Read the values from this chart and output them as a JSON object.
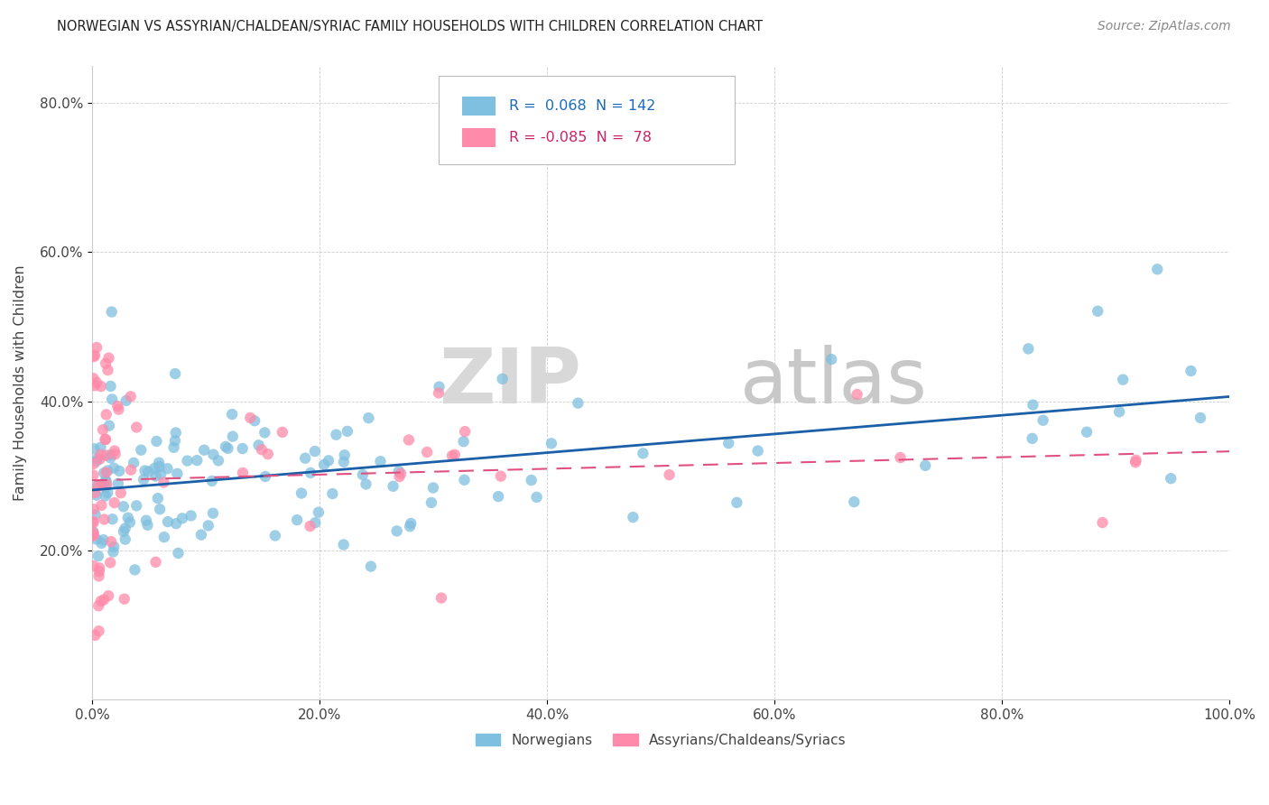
{
  "title": "NORWEGIAN VS ASSYRIAN/CHALDEAN/SYRIAC FAMILY HOUSEHOLDS WITH CHILDREN CORRELATION CHART",
  "source": "Source: ZipAtlas.com",
  "ylabel": "Family Households with Children",
  "xlim": [
    0.0,
    1.0
  ],
  "ylim": [
    0.0,
    0.85
  ],
  "xticks": [
    0.0,
    0.2,
    0.4,
    0.6,
    0.8,
    1.0
  ],
  "xticklabels": [
    "0.0%",
    "20.0%",
    "40.0%",
    "60.0%",
    "80.0%",
    "100.0%"
  ],
  "yticks": [
    0.2,
    0.4,
    0.6,
    0.8
  ],
  "yticklabels": [
    "20.0%",
    "40.0%",
    "60.0%",
    "80.0%"
  ],
  "legend_v1": "0.068",
  "legend_c1": "142",
  "legend_v2": "-0.085",
  "legend_c2": "78",
  "norwegian_color": "#7fbfdf",
  "assyrian_color": "#ff8aaa",
  "trend_norwegian_color": "#1a5fa8",
  "trend_assyrian_color": "#e05080",
  "watermark_zip": "ZIP",
  "watermark_atlas": "atlas",
  "background_color": "#ffffff",
  "legend_label1": "Norwegians",
  "legend_label2": "Assyrians/Chaldeans/Syriacs"
}
